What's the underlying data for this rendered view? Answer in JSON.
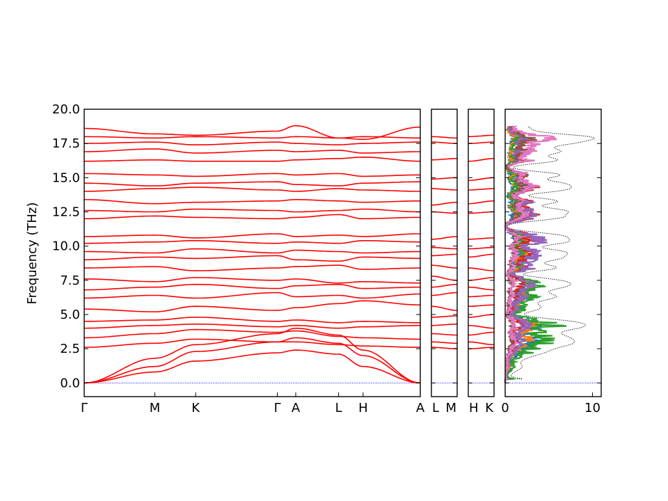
{
  "chart_data": [
    {
      "type": "line",
      "panel": "band-structure",
      "ylabel": "Frequency (THz)",
      "ylim": [
        -1.0,
        20.0
      ],
      "yticks": [
        "0.0",
        "2.5",
        "5.0",
        "7.5",
        "10.0",
        "12.5",
        "15.0",
        "17.5",
        "20.0"
      ],
      "ytick_values": [
        0,
        2.5,
        5,
        7.5,
        10,
        12.5,
        15,
        17.5,
        20
      ],
      "segments": [
        {
          "name": "main-path",
          "points": [
            "Γ",
            "M",
            "K",
            "Γ",
            "A",
            "L",
            "H",
            "A"
          ],
          "x_distance": [
            0,
            0.346,
            0.546,
            0.946,
            1.036,
            1.246,
            1.366,
            1.646
          ],
          "bands": [
            [
              0.0,
              0.8,
              1.6,
              2.2,
              2.4,
              2.1,
              1.2,
              0.0
            ],
            [
              0.0,
              1.2,
              2.3,
              3.0,
              3.3,
              2.9,
              2.0,
              0.0
            ],
            [
              0.0,
              1.8,
              2.8,
              3.6,
              4.0,
              3.5,
              2.4,
              0.0
            ],
            [
              2.6,
              2.9,
              3.2,
              3.0,
              3.0,
              2.8,
              2.7,
              2.6
            ],
            [
              3.3,
              3.6,
              3.9,
              3.7,
              3.8,
              3.4,
              3.3,
              3.2
            ],
            [
              4.0,
              4.2,
              4.3,
              4.1,
              4.2,
              4.0,
              4.1,
              4.2
            ],
            [
              4.5,
              4.6,
              4.8,
              4.5,
              4.6,
              4.4,
              4.5,
              4.4
            ],
            [
              5.4,
              5.2,
              5.6,
              5.3,
              5.5,
              5.8,
              6.0,
              5.7
            ],
            [
              6.2,
              6.4,
              6.2,
              6.6,
              6.3,
              6.4,
              6.2,
              6.5
            ],
            [
              6.8,
              7.0,
              7.2,
              6.9,
              7.1,
              7.2,
              6.9,
              7.0
            ],
            [
              7.6,
              7.4,
              7.7,
              7.5,
              7.6,
              7.3,
              7.4,
              7.3
            ],
            [
              8.4,
              8.5,
              8.2,
              8.4,
              8.5,
              8.6,
              8.3,
              8.4
            ],
            [
              9.0,
              9.2,
              9.1,
              9.3,
              9.0,
              8.9,
              9.2,
              9.1
            ],
            [
              9.6,
              9.5,
              9.8,
              9.5,
              9.7,
              9.6,
              9.5,
              9.6
            ],
            [
              10.2,
              10.3,
              10.4,
              10.2,
              10.3,
              10.2,
              10.4,
              10.3
            ],
            [
              10.7,
              10.8,
              10.6,
              10.9,
              10.7,
              10.8,
              10.7,
              10.9
            ],
            [
              12.0,
              12.2,
              12.1,
              12.0,
              12.1,
              12.3,
              12.0,
              12.1
            ],
            [
              12.6,
              12.5,
              12.7,
              12.6,
              12.5,
              12.6,
              12.7,
              12.5
            ],
            [
              13.4,
              13.1,
              13.2,
              13.3,
              13.4,
              13.3,
              13.2,
              13.3
            ],
            [
              14.0,
              14.2,
              14.3,
              14.1,
              14.0,
              14.2,
              14.1,
              14.0
            ],
            [
              14.6,
              14.4,
              14.6,
              14.7,
              14.5,
              14.4,
              14.6,
              14.7
            ],
            [
              15.3,
              15.2,
              15.1,
              15.3,
              15.2,
              15.3,
              15.1,
              15.2
            ],
            [
              16.2,
              16.3,
              16.2,
              16.2,
              16.3,
              16.4,
              16.5,
              16.2
            ],
            [
              16.9,
              17.1,
              16.8,
              17.0,
              16.9,
              17.0,
              16.8,
              16.9
            ],
            [
              17.5,
              17.6,
              17.4,
              17.6,
              17.5,
              17.4,
              17.5,
              17.6
            ],
            [
              18.0,
              17.9,
              18.0,
              17.9,
              18.0,
              17.9,
              18.0,
              17.9
            ],
            [
              18.6,
              18.2,
              18.1,
              18.4,
              18.8,
              17.9,
              17.8,
              18.7
            ]
          ],
          "zero_line": true
        },
        {
          "name": "L-M",
          "points": [
            "L",
            "M"
          ],
          "x_distance": [
            0,
            0.15
          ],
          "bands": [
            [
              2.6,
              2.5
            ],
            [
              3.0,
              2.9
            ],
            [
              3.6,
              3.5
            ],
            [
              4.2,
              4.3
            ],
            [
              4.8,
              4.9
            ],
            [
              5.6,
              5.3
            ],
            [
              6.4,
              6.6
            ],
            [
              7.0,
              7.2
            ],
            [
              7.8,
              7.5
            ],
            [
              8.6,
              8.4
            ],
            [
              9.3,
              9.4
            ],
            [
              9.9,
              9.8
            ],
            [
              10.5,
              10.7
            ],
            [
              12.5,
              12.4
            ],
            [
              13.0,
              13.2
            ],
            [
              14.2,
              14.1
            ],
            [
              14.9,
              15.0
            ],
            [
              16.3,
              16.4
            ],
            [
              17.6,
              17.5
            ],
            [
              18.0,
              17.9
            ]
          ],
          "zero_line": true
        },
        {
          "name": "H-K",
          "points": [
            "H",
            "K"
          ],
          "x_distance": [
            0,
            0.15
          ],
          "bands": [
            [
              2.5,
              2.6
            ],
            [
              3.0,
              2.8
            ],
            [
              3.5,
              3.7
            ],
            [
              4.2,
              4.0
            ],
            [
              4.8,
              5.0
            ],
            [
              5.6,
              5.7
            ],
            [
              6.3,
              6.4
            ],
            [
              7.0,
              6.8
            ],
            [
              7.5,
              7.7
            ],
            [
              8.4,
              8.2
            ],
            [
              9.2,
              9.4
            ],
            [
              9.8,
              9.9
            ],
            [
              10.5,
              10.6
            ],
            [
              12.4,
              12.5
            ],
            [
              13.1,
              13.3
            ],
            [
              14.1,
              14.2
            ],
            [
              14.8,
              15.0
            ],
            [
              16.2,
              16.4
            ],
            [
              17.5,
              17.6
            ],
            [
              18.0,
              18.1
            ]
          ],
          "zero_line": true
        }
      ]
    },
    {
      "type": "line",
      "panel": "dos",
      "xlim": [
        0,
        11
      ],
      "xticks": [
        "0",
        "10"
      ],
      "xtick_values": [
        0,
        10
      ],
      "ylim": [
        -1.0,
        20.0
      ],
      "series": [
        {
          "color": "#000000",
          "style": "dotted",
          "scale": 1.0,
          "center": 0
        },
        {
          "color": "#1f77b4",
          "style": "solid",
          "scale": 0.3,
          "center": 4.0
        },
        {
          "color": "#ff7f0e",
          "style": "solid",
          "scale": 0.3,
          "center": 6.5
        },
        {
          "color": "#2ca02c",
          "style": "solid",
          "scale": 0.45,
          "center": 4.0
        },
        {
          "color": "#d62728",
          "style": "solid",
          "scale": 0.35,
          "center": 12.0
        },
        {
          "color": "#9467bd",
          "style": "solid",
          "scale": 0.4,
          "center": 10.0
        },
        {
          "color": "#8c564b",
          "style": "solid",
          "scale": 0.25,
          "center": 16.0
        },
        {
          "color": "#e377c2",
          "style": "solid",
          "scale": 0.35,
          "center": 17.0
        }
      ]
    }
  ],
  "colors": {
    "band": "#ff0000",
    "zero_line": "#0000ff",
    "axis": "#000000"
  }
}
